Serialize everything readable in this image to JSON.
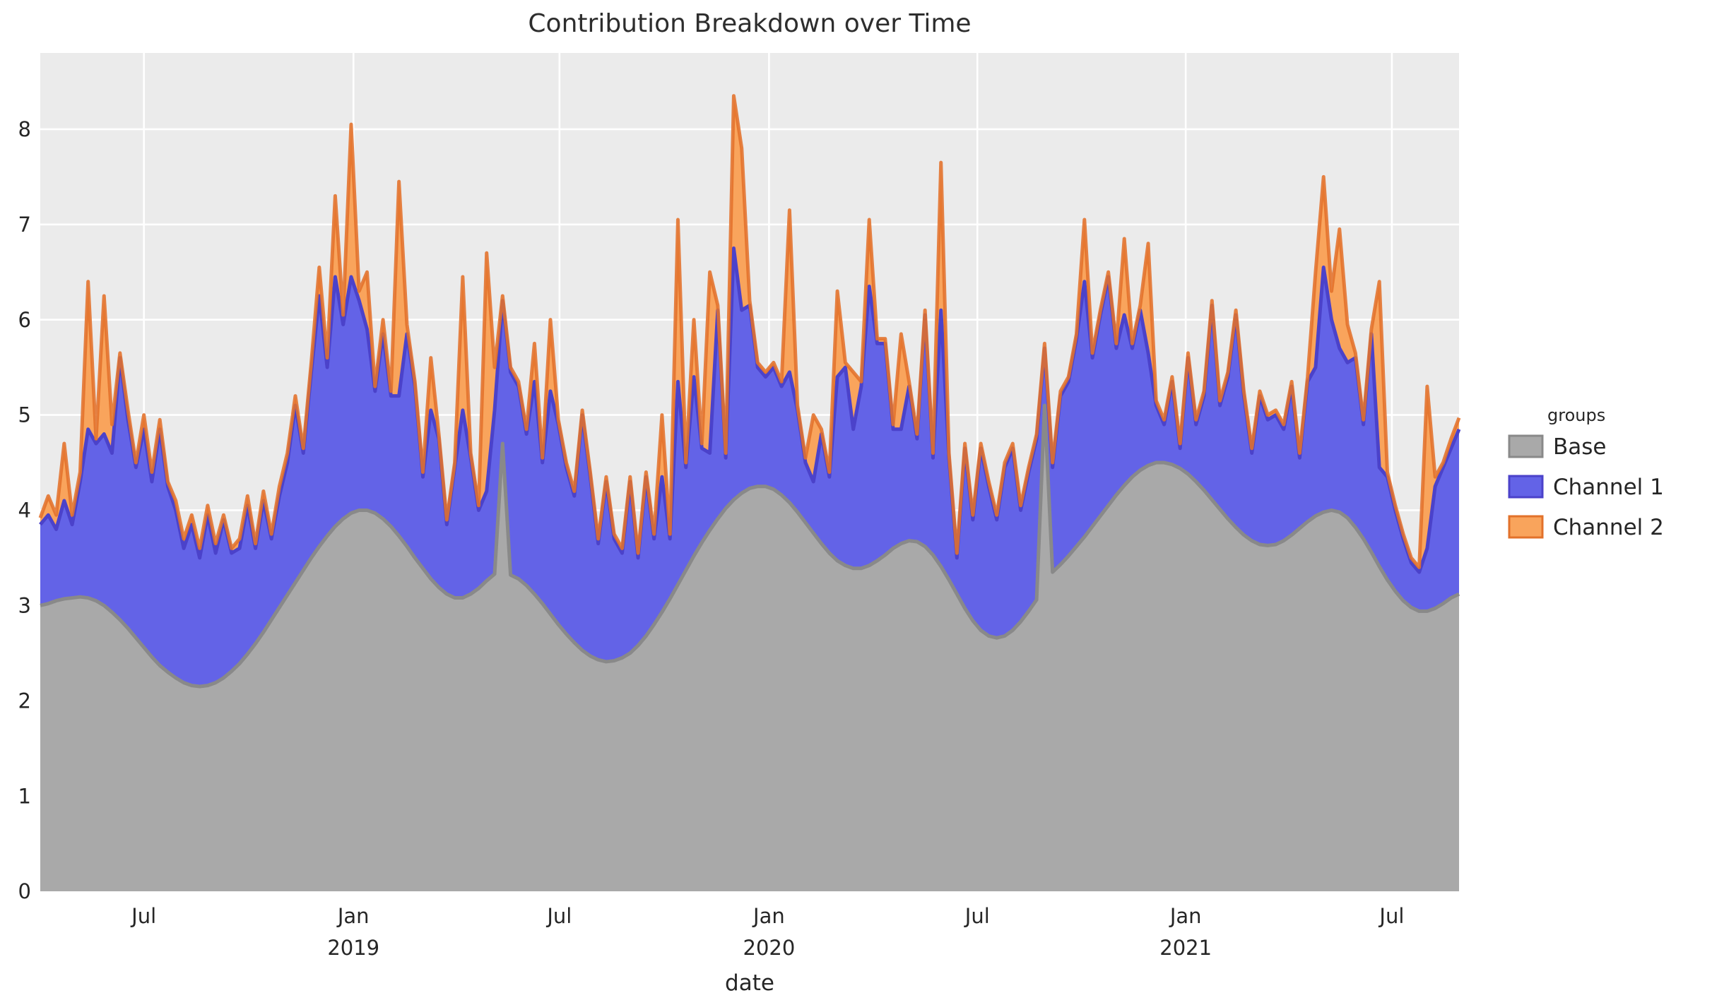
{
  "title": "Contribution Breakdown over Time",
  "axes": {
    "x_label": "date",
    "y_ticks": [
      0,
      1,
      2,
      3,
      4,
      5,
      6,
      7,
      8
    ],
    "x_ticks": [
      {
        "label": "Jul",
        "year": "",
        "week": 13.0
      },
      {
        "label": "Jan",
        "year": "2019",
        "week": 39.29
      },
      {
        "label": "Jul",
        "year": "",
        "week": 65.14
      },
      {
        "label": "Jan",
        "year": "2020",
        "week": 91.43
      },
      {
        "label": "Jul",
        "year": "",
        "week": 117.57
      },
      {
        "label": "Jan",
        "year": "2021",
        "week": 143.71
      },
      {
        "label": "Jul",
        "year": "",
        "week": 169.57
      }
    ]
  },
  "legend": {
    "title": "groups",
    "items": [
      {
        "label": "Base",
        "fill": "#a9a9a9",
        "stroke": "#898989"
      },
      {
        "label": "Channel 1",
        "fill": "#6363e7",
        "stroke": "#4b42ca"
      },
      {
        "label": "Channel 2",
        "fill": "#f9a45c",
        "stroke": "#e2712a"
      }
    ]
  },
  "colors": {
    "panel_bg": "#ebebeb",
    "grid": "#ffffff",
    "text": "#262626",
    "title_text": "#2d2d2d"
  },
  "chart_data": {
    "type": "area",
    "stacked": true,
    "title": "Contribution Breakdown over Time",
    "xlabel": "date",
    "ylabel": "",
    "ylim": [
      0,
      8.8
    ],
    "x_unit": "week",
    "x_start_date": "2018-04-01",
    "x_freq_days": 7,
    "n_points": 179,
    "legend_position": "right",
    "grid": true,
    "series": [
      {
        "name": "Base",
        "values": [
          3.0,
          3.02,
          3.05,
          3.07,
          3.08,
          3.09,
          3.08,
          3.05,
          3.0,
          2.93,
          2.85,
          2.76,
          2.66,
          2.56,
          2.46,
          2.37,
          2.3,
          2.24,
          2.19,
          2.16,
          2.15,
          2.16,
          2.19,
          2.24,
          2.31,
          2.39,
          2.49,
          2.6,
          2.72,
          2.85,
          2.98,
          3.11,
          3.24,
          3.37,
          3.5,
          3.62,
          3.73,
          3.83,
          3.91,
          3.97,
          4.0,
          4.0,
          3.97,
          3.91,
          3.83,
          3.73,
          3.62,
          3.5,
          3.39,
          3.28,
          3.19,
          3.12,
          3.08,
          3.08,
          3.12,
          3.18,
          3.26,
          3.33,
          4.7,
          3.32,
          3.28,
          3.21,
          3.12,
          3.02,
          2.91,
          2.8,
          2.7,
          2.61,
          2.53,
          2.47,
          2.43,
          2.41,
          2.42,
          2.45,
          2.5,
          2.58,
          2.68,
          2.8,
          2.93,
          3.07,
          3.22,
          3.37,
          3.52,
          3.66,
          3.79,
          3.91,
          4.02,
          4.11,
          4.18,
          4.23,
          4.25,
          4.25,
          4.22,
          4.16,
          4.08,
          3.98,
          3.87,
          3.76,
          3.65,
          3.55,
          3.47,
          3.42,
          3.39,
          3.39,
          3.42,
          3.47,
          3.53,
          3.6,
          3.65,
          3.68,
          3.67,
          3.62,
          3.53,
          3.41,
          3.27,
          3.12,
          2.97,
          2.84,
          2.74,
          2.68,
          2.66,
          2.68,
          2.74,
          2.83,
          2.94,
          3.06,
          5.1,
          3.35,
          3.43,
          3.52,
          3.62,
          3.72,
          3.83,
          3.94,
          4.05,
          4.16,
          4.26,
          4.35,
          4.42,
          4.47,
          4.5,
          4.5,
          4.48,
          4.44,
          4.38,
          4.3,
          4.21,
          4.11,
          4.01,
          3.91,
          3.82,
          3.74,
          3.68,
          3.64,
          3.63,
          3.64,
          3.68,
          3.74,
          3.81,
          3.88,
          3.94,
          3.98,
          4.0,
          3.98,
          3.92,
          3.82,
          3.7,
          3.56,
          3.41,
          3.27,
          3.15,
          3.05,
          2.98,
          2.94,
          2.94,
          2.97,
          3.02,
          3.08,
          3.12
        ]
      },
      {
        "name": "Channel 1",
        "values": [
          0.85,
          0.93,
          0.75,
          1.03,
          0.77,
          1.21,
          1.77,
          1.65,
          1.8,
          1.67,
          2.75,
          2.19,
          1.79,
          2.29,
          1.84,
          2.48,
          1.95,
          1.76,
          1.41,
          1.69,
          1.35,
          1.79,
          1.36,
          1.66,
          1.24,
          1.21,
          1.56,
          1.0,
          1.38,
          0.85,
          1.17,
          1.39,
          1.86,
          1.23,
          1.95,
          2.63,
          1.77,
          2.62,
          2.04,
          2.48,
          2.2,
          1.9,
          1.28,
          1.94,
          1.37,
          1.47,
          2.23,
          1.8,
          0.96,
          1.77,
          1.56,
          0.73,
          1.37,
          1.97,
          1.43,
          0.82,
          0.94,
          1.72,
          1.5,
          2.13,
          2.02,
          1.59,
          2.23,
          1.48,
          2.34,
          2.1,
          1.75,
          1.54,
          2.47,
          1.88,
          1.22,
          1.89,
          1.28,
          1.1,
          1.8,
          0.92,
          1.67,
          0.9,
          1.42,
          0.63,
          2.13,
          1.08,
          1.88,
          0.99,
          0.81,
          2.19,
          0.53,
          2.64,
          1.92,
          1.92,
          1.25,
          1.15,
          1.28,
          1.14,
          1.37,
          1.07,
          0.63,
          0.54,
          1.15,
          0.8,
          1.93,
          2.08,
          1.46,
          1.91,
          2.93,
          2.28,
          2.22,
          1.25,
          1.2,
          1.62,
          1.08,
          2.43,
          1.02,
          2.69,
          1.28,
          0.38,
          1.68,
          1.06,
          1.91,
          1.57,
          1.24,
          1.77,
          1.91,
          1.17,
          1.46,
          1.69,
          0.6,
          1.1,
          1.77,
          1.83,
          2.18,
          2.68,
          1.77,
          2.11,
          2.4,
          1.54,
          1.79,
          1.35,
          1.68,
          1.18,
          0.6,
          0.4,
          0.87,
          0.21,
          1.22,
          0.6,
          0.99,
          2.04,
          1.09,
          1.49,
          2.23,
          1.46,
          0.92,
          1.56,
          1.32,
          1.36,
          1.17,
          1.56,
          0.74,
          1.47,
          1.56,
          2.57,
          2.0,
          1.72,
          1.63,
          1.78,
          1.2,
          2.29,
          1.04,
          1.08,
          0.85,
          0.65,
          0.47,
          0.41,
          0.66,
          1.28,
          1.43,
          1.57,
          1.73
        ]
      },
      {
        "name": "Channel 2",
        "values": [
          0.07,
          0.2,
          0.15,
          0.6,
          0.1,
          0.1,
          1.55,
          0.05,
          1.45,
          0.3,
          0.05,
          0.1,
          0.05,
          0.15,
          0.1,
          0.1,
          0.05,
          0.1,
          0.1,
          0.1,
          0.1,
          0.1,
          0.1,
          0.05,
          0.05,
          0.1,
          0.1,
          0.05,
          0.1,
          0.05,
          0.1,
          0.1,
          0.1,
          0.05,
          0.1,
          0.3,
          0.1,
          0.85,
          0.1,
          1.6,
          0.1,
          0.6,
          0.05,
          0.15,
          0.05,
          2.25,
          0.1,
          0.05,
          0.05,
          0.55,
          0.05,
          0.05,
          0.05,
          1.4,
          0.05,
          0.05,
          2.5,
          0.45,
          0.05,
          0.05,
          0.05,
          0.05,
          0.4,
          0.05,
          0.75,
          0.05,
          0.05,
          0.05,
          0.05,
          0.05,
          0.05,
          0.05,
          0.05,
          0.05,
          0.05,
          0.05,
          0.05,
          0.05,
          0.65,
          0.05,
          1.7,
          0.05,
          0.6,
          0.05,
          1.9,
          0.05,
          0.05,
          1.6,
          1.7,
          0.05,
          0.05,
          0.05,
          0.05,
          0.05,
          1.7,
          0.05,
          0.05,
          0.7,
          0.05,
          0.05,
          0.9,
          0.05,
          0.6,
          0.05,
          0.7,
          0.05,
          0.05,
          0.05,
          1.0,
          0.05,
          0.05,
          0.05,
          0.05,
          1.55,
          0.05,
          0.05,
          0.05,
          0.05,
          0.05,
          0.05,
          0.05,
          0.05,
          0.05,
          0.05,
          0.05,
          0.05,
          0.05,
          0.05,
          0.05,
          0.05,
          0.05,
          0.65,
          0.05,
          0.05,
          0.05,
          0.05,
          0.8,
          0.05,
          0.05,
          1.15,
          0.05,
          0.05,
          0.05,
          0.05,
          0.05,
          0.05,
          0.05,
          0.05,
          0.05,
          0.05,
          0.05,
          0.05,
          0.05,
          0.05,
          0.05,
          0.05,
          0.05,
          0.05,
          0.05,
          0.05,
          1.0,
          0.95,
          0.3,
          1.25,
          0.4,
          0.05,
          0.05,
          0.05,
          1.95,
          0.05,
          0.05,
          0.05,
          0.05,
          0.05,
          1.7,
          0.1,
          0.05,
          0.1,
          0.12
        ]
      }
    ]
  }
}
